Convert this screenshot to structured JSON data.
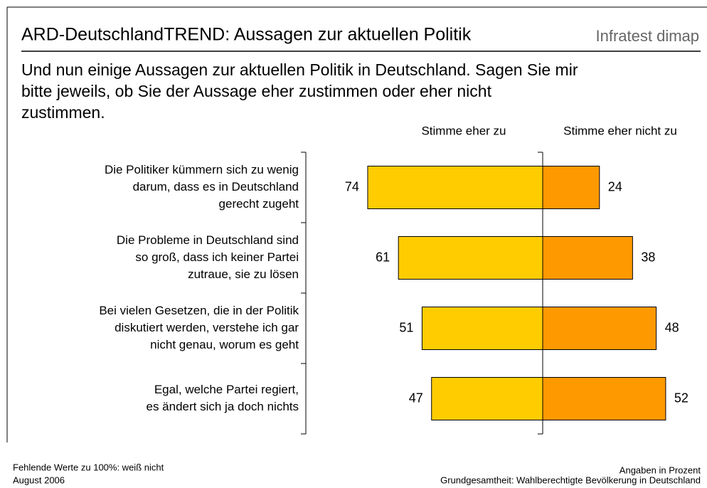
{
  "chart_data": {
    "type": "diverging-bar",
    "title": "ARD-DeutschlandTREND: Aussagen zur aktuellen Politik",
    "brand": "Infratest dimap",
    "subtitle": [
      "Und nun einige Aussagen zur aktuellen Politik in Deutschland. Sagen Sie mir",
      "bitte jeweils, ob Sie der Aussage eher zustimmen oder eher nicht",
      "zustimmen."
    ],
    "categories": [
      [
        "Die Politiker kümmern sich zu wenig",
        "darum, dass es in Deutschland",
        "gerecht zugeht"
      ],
      [
        "Die Probleme in Deutschland sind",
        "so groß, dass ich keiner Partei",
        "zutraue, sie zu lösen"
      ],
      [
        "Bei vielen Gesetzen, die in der Politik",
        "diskutiert werden, verstehe ich gar",
        "nicht genau, worum es geht"
      ],
      [
        "Egal, welche Partei regiert,",
        "es ändert sich ja doch nichts"
      ]
    ],
    "series": [
      {
        "name": "Stimme eher zu",
        "color": "#ffcc00",
        "values": [
          74,
          61,
          51,
          47
        ]
      },
      {
        "name": "Stimme eher nicht zu",
        "color": "#ff9900",
        "values": [
          24,
          38,
          48,
          52
        ]
      }
    ],
    "footnotes_left": [
      "Fehlende Werte zu 100%: weiß nicht",
      "August 2006"
    ],
    "footnotes_right": [
      "Angaben in Prozent",
      "Grundgesamtheit: Wahlberechtigte Bevölkerung in Deutschland"
    ]
  }
}
